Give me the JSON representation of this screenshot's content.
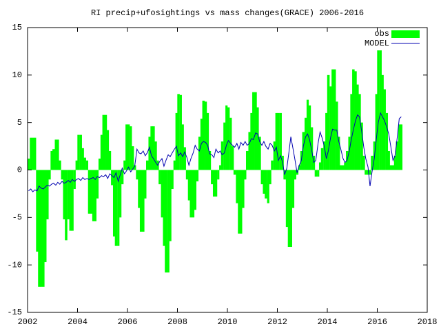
{
  "chart_data": {
    "type": "bar-line",
    "title": "RI precip+ufosightings vs mass changes(GRACE) 2006-2016",
    "xlim": [
      2002,
      2018
    ],
    "xticks": [
      2002,
      2004,
      2006,
      2008,
      2010,
      2012,
      2014,
      2016,
      2018
    ],
    "ylim": [
      -15,
      15
    ],
    "yticks": [
      -15,
      -10,
      -5,
      0,
      5,
      10,
      15
    ],
    "legend": "top-right",
    "x": [
      2002.04,
      2002.13,
      2002.21,
      2002.29,
      2002.38,
      2002.46,
      2002.54,
      2002.63,
      2002.71,
      2002.79,
      2002.88,
      2002.96,
      2003.04,
      2003.13,
      2003.21,
      2003.29,
      2003.38,
      2003.46,
      2003.54,
      2003.63,
      2003.71,
      2003.79,
      2003.88,
      2003.96,
      2004.04,
      2004.13,
      2004.21,
      2004.29,
      2004.38,
      2004.46,
      2004.54,
      2004.63,
      2004.71,
      2004.79,
      2004.88,
      2004.96,
      2005.04,
      2005.13,
      2005.21,
      2005.29,
      2005.38,
      2005.46,
      2005.54,
      2005.63,
      2005.71,
      2005.79,
      2005.88,
      2005.96,
      2006.04,
      2006.13,
      2006.21,
      2006.29,
      2006.38,
      2006.46,
      2006.54,
      2006.63,
      2006.71,
      2006.79,
      2006.88,
      2006.96,
      2007.04,
      2007.13,
      2007.21,
      2007.29,
      2007.38,
      2007.46,
      2007.54,
      2007.63,
      2007.71,
      2007.79,
      2007.88,
      2007.96,
      2008.04,
      2008.13,
      2008.21,
      2008.29,
      2008.38,
      2008.46,
      2008.54,
      2008.63,
      2008.71,
      2008.79,
      2008.88,
      2008.96,
      2009.04,
      2009.13,
      2009.21,
      2009.29,
      2009.38,
      2009.46,
      2009.54,
      2009.63,
      2009.71,
      2009.79,
      2009.88,
      2009.96,
      2010.04,
      2010.13,
      2010.21,
      2010.29,
      2010.38,
      2010.46,
      2010.54,
      2010.63,
      2010.71,
      2010.79,
      2010.88,
      2010.96,
      2011.04,
      2011.13,
      2011.21,
      2011.29,
      2011.38,
      2011.46,
      2011.54,
      2011.63,
      2011.71,
      2011.79,
      2011.88,
      2011.96,
      2012.04,
      2012.13,
      2012.21,
      2012.29,
      2012.38,
      2012.46,
      2012.54,
      2012.63,
      2012.71,
      2012.79,
      2012.88,
      2012.96,
      2013.04,
      2013.13,
      2013.21,
      2013.29,
      2013.38,
      2013.46,
      2013.54,
      2013.63,
      2013.71,
      2013.79,
      2013.88,
      2013.96,
      2014.04,
      2014.13,
      2014.21,
      2014.29,
      2014.38,
      2014.46,
      2014.54,
      2014.63,
      2014.71,
      2014.79,
      2014.88,
      2014.96,
      2015.04,
      2015.13,
      2015.21,
      2015.29,
      2015.38,
      2015.46,
      2015.54,
      2015.63,
      2015.71,
      2015.79,
      2015.88,
      2015.96,
      2016.04,
      2016.13,
      2016.21,
      2016.29,
      2016.38,
      2016.46,
      2016.54,
      2016.63,
      2016.71,
      2016.79,
      2016.88,
      2016.96
    ],
    "series": [
      {
        "name": "obs",
        "color": "#00ff00",
        "values": [
          1.2,
          3.4,
          3.4,
          3.4,
          -8.6,
          -12.3,
          -12.3,
          -12.3,
          -9.7,
          -5.2,
          -1.0,
          2.0,
          2.2,
          3.2,
          3.2,
          1.0,
          -1.0,
          -5.2,
          -7.4,
          -5.2,
          -6.4,
          -6.4,
          -2.0,
          1.0,
          3.7,
          3.7,
          2.3,
          1.3,
          1.0,
          -4.6,
          -4.6,
          -5.4,
          -5.4,
          -3.0,
          1.2,
          3.7,
          5.8,
          5.8,
          4.2,
          2.0,
          -1.6,
          -7.0,
          -8.0,
          -8.0,
          -5.0,
          -1.5,
          1.0,
          4.8,
          4.8,
          4.6,
          2.5,
          0.5,
          -1.0,
          -4.0,
          -6.5,
          -6.5,
          -3.0,
          1.0,
          3.5,
          4.6,
          4.6,
          3.0,
          1.0,
          -1.5,
          -5.0,
          -8.0,
          -10.8,
          -10.8,
          -7.5,
          -2.0,
          1.0,
          6.0,
          8.0,
          7.9,
          4.8,
          2.4,
          -1.0,
          -3.2,
          -5.0,
          -5.0,
          -4.2,
          -1.2,
          3.5,
          5.4,
          7.3,
          7.2,
          6.0,
          2.0,
          -1.5,
          -2.8,
          -2.8,
          -1.0,
          0.5,
          3.0,
          5.0,
          6.8,
          6.6,
          5.5,
          2.5,
          -0.5,
          -3.5,
          -6.7,
          -6.7,
          -4.0,
          -1.0,
          2.0,
          4.0,
          6.0,
          8.2,
          8.2,
          6.6,
          3.5,
          -1.5,
          -2.5,
          -3.0,
          -3.5,
          -1.5,
          1.0,
          3.0,
          6.0,
          6.0,
          6.0,
          1.5,
          -1.0,
          -6.0,
          -8.1,
          -8.1,
          -4.0,
          -1.0,
          -0.5,
          0.5,
          2.0,
          4.0,
          5.5,
          7.4,
          6.8,
          4.5,
          1.5,
          -0.7,
          -0.7,
          0.8,
          2.3,
          3.0,
          6.0,
          10.0,
          8.8,
          10.6,
          10.6,
          7.2,
          3.5,
          0.5,
          0.5,
          0.8,
          2.0,
          3.5,
          8.0,
          10.6,
          10.4,
          9.0,
          8.0,
          5.0,
          1.5,
          -0.5,
          -0.5,
          -0.5,
          1.5,
          3.0,
          8.0,
          12.6,
          12.6,
          10.0,
          8.5,
          6.0,
          2.0,
          0.5,
          0.5,
          1.5,
          3.0,
          4.8,
          4.8
        ]
      },
      {
        "name": "MODEL",
        "color": "#0000b0",
        "values": [
          -2.2,
          -2.0,
          -2.3,
          -2.1,
          -2.2,
          -1.7,
          -1.9,
          -2.0,
          -1.8,
          -1.6,
          -1.7,
          -1.5,
          -1.4,
          -1.6,
          -1.3,
          -1.5,
          -1.2,
          -1.4,
          -1.3,
          -1.1,
          -1.3,
          -1.0,
          -1.2,
          -1.0,
          -0.9,
          -1.1,
          -0.8,
          -1.0,
          -0.9,
          -1.0,
          -0.9,
          -0.8,
          -1.0,
          -0.7,
          -0.8,
          -0.6,
          -0.7,
          -0.5,
          -0.9,
          -0.4,
          -0.6,
          -0.8,
          -0.3,
          -1.2,
          -0.5,
          0.2,
          -0.4,
          -0.1,
          0.3,
          -0.2,
          0.1,
          0.4,
          2.2,
          1.8,
          1.7,
          2.0,
          1.5,
          1.8,
          2.4,
          1.5,
          1.2,
          0.8,
          0.5,
          0.9,
          1.2,
          0.4,
          1.0,
          1.6,
          1.4,
          1.8,
          2.2,
          2.5,
          1.5,
          1.8,
          1.4,
          1.9,
          1.3,
          0.5,
          1.2,
          1.8,
          2.6,
          2.2,
          2.0,
          2.8,
          3.0,
          2.9,
          2.6,
          1.7,
          1.6,
          1.3,
          2.2,
          1.8,
          2.0,
          1.6,
          1.8,
          2.6,
          3.1,
          2.8,
          2.6,
          2.4,
          2.8,
          2.2,
          2.9,
          2.6,
          3.0,
          2.6,
          2.8,
          3.3,
          3.2,
          3.9,
          3.8,
          3.0,
          2.6,
          3.0,
          2.5,
          2.2,
          2.8,
          2.6,
          2.0,
          2.4,
          1.0,
          1.5,
          0.8,
          -0.5,
          0.2,
          1.8,
          3.5,
          2.2,
          1.0,
          -0.3,
          0.5,
          1.0,
          2.5,
          3.5,
          3.8,
          3.2,
          2.0,
          0.8,
          1.0,
          2.8,
          4.0,
          3.4,
          2.5,
          1.2,
          2.0,
          3.4,
          4.3,
          4.2,
          4.2,
          3.0,
          2.2,
          1.2,
          0.8,
          1.0,
          2.0,
          3.2,
          4.2,
          5.2,
          5.8,
          5.6,
          4.0,
          2.4,
          1.2,
          0.3,
          -1.7,
          -0.2,
          1.2,
          3.2,
          5.0,
          6.0,
          5.6,
          5.2,
          4.5,
          3.8,
          2.5,
          1.0,
          1.5,
          3.2,
          5.4,
          5.6
        ]
      }
    ]
  }
}
